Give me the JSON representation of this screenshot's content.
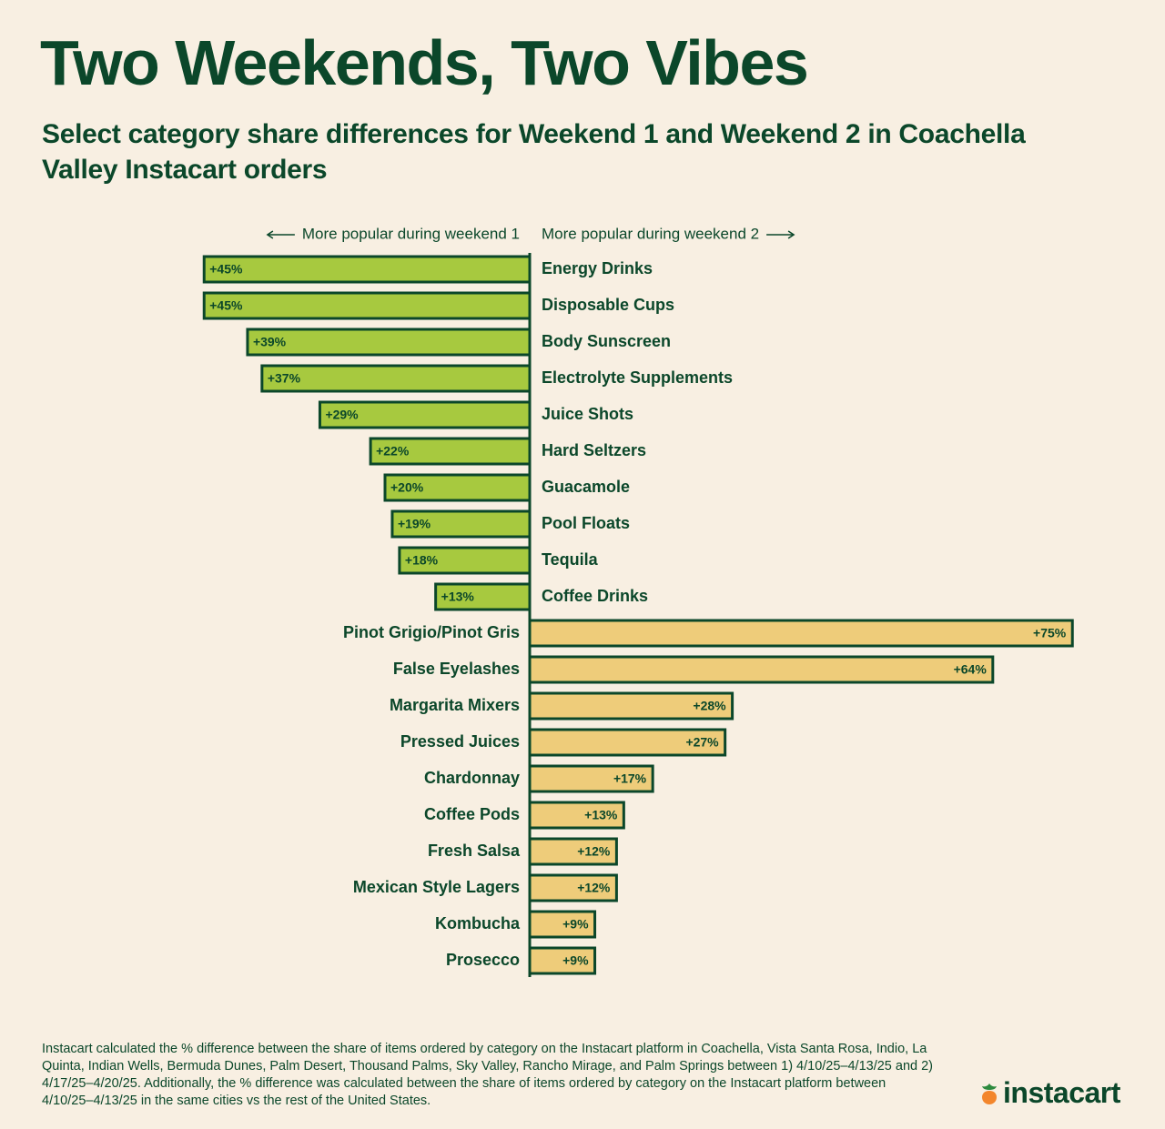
{
  "chart_data": {
    "type": "bar",
    "title": "Two Weekends, Two Vibes",
    "subtitle": "Select category share differences for Weekend 1 and Weekend 2 in Coachella Valley Instacart orders",
    "categories": [
      "Energy Drinks",
      "Disposable Cups",
      "Body Sunscreen",
      "Electrolyte Supplements",
      "Juice Shots",
      "Hard Seltzers",
      "Guacamole",
      "Pool Floats",
      "Tequila",
      "Coffee Drinks",
      "Pinot Grigio/Pinot Gris",
      "False Eyelashes",
      "Margarita Mixers",
      "Pressed Juices",
      "Chardonnay",
      "Coffee Pods",
      "Fresh Salsa",
      "Mexican Style Lagers",
      "Kombucha",
      "Prosecco"
    ],
    "series": [
      {
        "name": "More popular during weekend 1",
        "color": "#a7c93f",
        "values": [
          45,
          45,
          39,
          37,
          29,
          22,
          20,
          19,
          18,
          13,
          null,
          null,
          null,
          null,
          null,
          null,
          null,
          null,
          null,
          null
        ],
        "value_labels": [
          "+45%",
          "+45%",
          "+39%",
          "+37%",
          "+29%",
          "+22%",
          "+20%",
          "+19%",
          "+18%",
          "+13%",
          null,
          null,
          null,
          null,
          null,
          null,
          null,
          null,
          null,
          null
        ]
      },
      {
        "name": "More popular during weekend 2",
        "color": "#eecc7a",
        "values": [
          null,
          null,
          null,
          null,
          null,
          null,
          null,
          null,
          null,
          null,
          75,
          64,
          28,
          27,
          17,
          13,
          12,
          12,
          9,
          9
        ],
        "value_labels": [
          null,
          null,
          null,
          null,
          null,
          null,
          null,
          null,
          null,
          null,
          "+75%",
          "+64%",
          "+28%",
          "+27%",
          "+17%",
          "+13%",
          "+12%",
          "+12%",
          "+9%",
          "+9%"
        ]
      }
    ]
  },
  "footnote": "Instacart calculated the % difference between the share of items ordered by category on the Instacart platform in Coachella, Vista Santa Rosa, Indio, La Quinta, Indian Wells, Bermuda Dunes, Palm Desert, Thousand Palms, Sky Valley, Rancho Mirage, and Palm Springs between 1) 4/10/25–4/13/25 and 2) 4/17/25–4/20/25. Additionally, the % difference was calculated between the share of items ordered by category on the Instacart platform between 4/10/25–4/13/25 in the same cities vs the rest of the United States.",
  "logo": "instacart"
}
